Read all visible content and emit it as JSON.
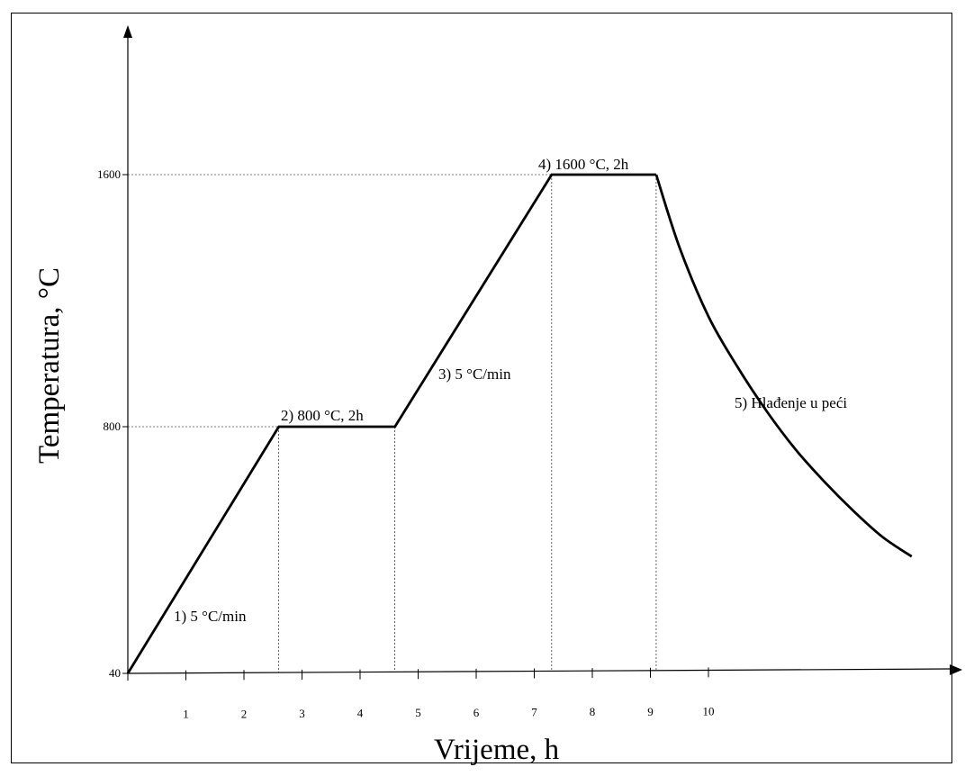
{
  "chart_data": {
    "type": "line",
    "title": "",
    "xlabel": "Vrijeme, h",
    "ylabel": "Temperatura, °C",
    "x_ticks": [
      1,
      2,
      3,
      4,
      5,
      6,
      7,
      8,
      9,
      10
    ],
    "y_ticks": [
      40,
      800,
      1600
    ],
    "xlim": [
      0,
      14
    ],
    "ylim": [
      40,
      2280
    ],
    "grid": false,
    "series": [
      {
        "name": "",
        "x": [
          0,
          2.6,
          4.6,
          7.3,
          9.1
        ],
        "y": [
          40,
          800,
          800,
          1600,
          1600
        ],
        "cooling_curve": {
          "x": [
            9.1,
            9.5,
            10,
            10.5,
            11,
            11.5,
            12,
            12.5,
            13,
            13.5
          ],
          "y": [
            1600,
            1370,
            1150,
            990,
            850,
            730,
            630,
            540,
            460,
            400
          ]
        }
      }
    ],
    "reference_lines": {
      "horizontal": [
        800,
        1600
      ],
      "vertical_x": [
        2.6,
        4.6,
        7.3,
        9.1
      ]
    },
    "annotations": [
      {
        "id": "seg1",
        "text": "1) 5 °C/min"
      },
      {
        "id": "seg2",
        "text": "2) 800 °C, 2h"
      },
      {
        "id": "seg3",
        "text": "3) 5 °C/min"
      },
      {
        "id": "seg4",
        "text": "4) 1600 °C, 2h"
      },
      {
        "id": "seg5",
        "text": "5) Hlađenje u peći"
      }
    ]
  }
}
